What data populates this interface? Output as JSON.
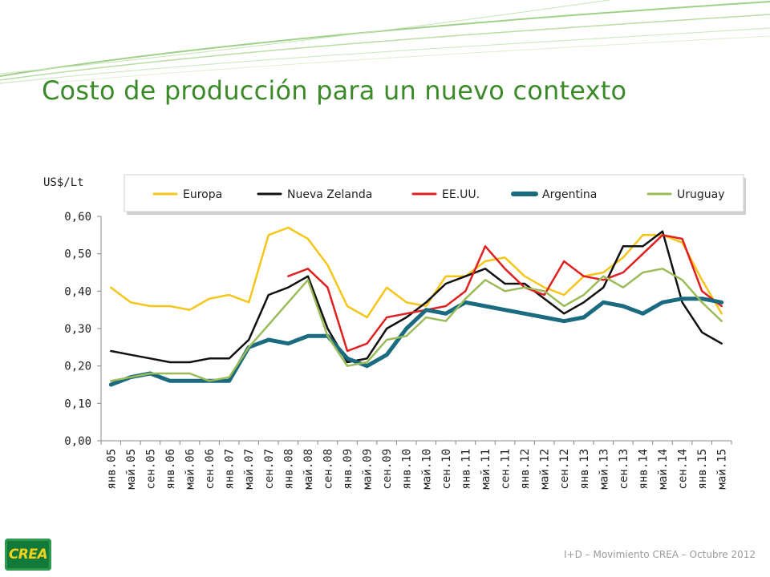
{
  "slide": {
    "title": "Costo de producción para un nuevo contexto",
    "footer": "I+D – Movimiento CREA – Octubre 2012",
    "logo_text": "CREA",
    "accent_color": "#3b8a2a"
  },
  "chart_data": {
    "type": "line",
    "title": "",
    "ylabel": "US$/Lt",
    "xlabel": "",
    "ylim": [
      0,
      0.6
    ],
    "yticks": [
      "0,00",
      "0,10",
      "0,20",
      "0,30",
      "0,40",
      "0,50",
      "0,60"
    ],
    "grid": false,
    "legend_position": "top",
    "categories": [
      "янв.05",
      "май.05",
      "сен.05",
      "янв.06",
      "май.06",
      "сен.06",
      "янв.07",
      "май.07",
      "сен.07",
      "янв.08",
      "май.08",
      "сен.08",
      "янв.09",
      "май.09",
      "сен.09",
      "янв.10",
      "май.10",
      "сен.10",
      "янв.11",
      "май.11",
      "сен.11",
      "янв.12",
      "май.12",
      "сен.12",
      "янв.13",
      "май.13",
      "сен.13",
      "янв.14",
      "май.14",
      "сен.14",
      "янв.15",
      "май.15"
    ],
    "series": [
      {
        "name": "Europa",
        "color": "#f5c518",
        "values": [
          0.41,
          0.37,
          0.36,
          0.36,
          0.35,
          0.38,
          0.39,
          0.37,
          0.55,
          0.57,
          0.54,
          0.47,
          0.36,
          0.33,
          0.41,
          0.37,
          0.36,
          0.44,
          0.44,
          0.48,
          0.49,
          0.44,
          0.41,
          0.39,
          0.44,
          0.45,
          0.49,
          0.55,
          0.55,
          0.53,
          0.43,
          0.34
        ]
      },
      {
        "name": "Nueva Zelanda",
        "color": "#111111",
        "values": [
          0.24,
          0.23,
          0.22,
          0.21,
          0.21,
          0.22,
          0.22,
          0.27,
          0.39,
          0.41,
          0.44,
          0.3,
          0.21,
          0.22,
          0.3,
          0.33,
          0.37,
          0.42,
          0.44,
          0.46,
          0.42,
          0.42,
          0.38,
          0.34,
          0.37,
          0.41,
          0.52,
          0.52,
          0.56,
          0.37,
          0.29,
          0.26
        ]
      },
      {
        "name": "EE.UU.",
        "color": "#e02020",
        "values": [
          null,
          null,
          null,
          null,
          null,
          null,
          null,
          null,
          null,
          0.44,
          0.46,
          0.41,
          0.24,
          0.26,
          0.33,
          0.34,
          0.35,
          0.36,
          0.4,
          0.52,
          0.46,
          0.41,
          0.39,
          0.48,
          0.44,
          0.43,
          0.45,
          0.5,
          0.55,
          0.54,
          0.4,
          0.36
        ]
      },
      {
        "name": "Argentina",
        "color": "#1a6a80",
        "values": [
          0.15,
          0.17,
          0.18,
          0.16,
          0.16,
          0.16,
          0.16,
          0.25,
          0.27,
          0.26,
          0.28,
          0.28,
          0.22,
          0.2,
          0.23,
          0.3,
          0.35,
          0.34,
          0.37,
          0.36,
          0.35,
          0.34,
          0.33,
          0.32,
          0.33,
          0.37,
          0.36,
          0.34,
          0.37,
          0.38,
          0.38,
          0.37
        ]
      },
      {
        "name": "Uruguay",
        "color": "#9bbb59",
        "values": [
          0.16,
          0.17,
          0.18,
          0.18,
          0.18,
          0.16,
          0.17,
          0.25,
          0.31,
          0.37,
          0.43,
          0.28,
          0.2,
          0.21,
          0.27,
          0.28,
          0.33,
          0.32,
          0.38,
          0.43,
          0.4,
          0.41,
          0.4,
          0.36,
          0.39,
          0.44,
          0.41,
          0.45,
          0.46,
          0.43,
          0.37,
          0.32
        ]
      }
    ]
  }
}
